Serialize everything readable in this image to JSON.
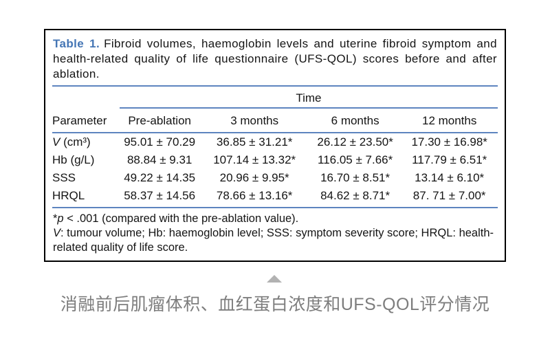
{
  "table": {
    "label": "Table 1.",
    "title": "Fibroid volumes, haemoglobin levels and uterine fibroid symptom and health-related quality of life questionnaire (UFS-QOL) scores before and after ablation.",
    "time_header": "Time",
    "columns": [
      "Parameter",
      "Pre-ablation",
      "3 months",
      "6 months",
      "12 months"
    ],
    "rows": [
      {
        "param_italic": "V",
        "param_rest": " (cm³)",
        "values": [
          "95.01 ± 70.29",
          "36.85 ± 31.21*",
          "26.12 ± 23.50*",
          "17.30 ± 16.98*"
        ]
      },
      {
        "param_italic": "",
        "param_rest": "Hb (g/L)",
        "values": [
          "88.84 ± 9.31",
          "107.14 ± 13.32*",
          "116.05 ± 7.66*",
          "117.79 ± 6.51*"
        ]
      },
      {
        "param_italic": "",
        "param_rest": "SSS",
        "values": [
          "49.22 ± 14.35",
          "20.96 ± 9.95*",
          "16.70 ± 8.51*",
          "13.14 ± 6.10*"
        ]
      },
      {
        "param_italic": "",
        "param_rest": "HRQL",
        "values": [
          "58.37 ± 14.56",
          "78.66 ± 13.16*",
          "84.62 ± 8.71*",
          "87. 71 ± 7.00*"
        ]
      }
    ],
    "footnote_significance": {
      "star": "*",
      "italic": "p",
      "rest": " < .001 (compared with the pre-ablation value)."
    },
    "footnote_abbreviations": {
      "italic": "V",
      "rest": ": tumour volume; Hb: haemoglobin level; SSS: symptom severity score; HRQL: health-related quality of life score."
    }
  },
  "caption": {
    "marker_icon": "triangle-up-icon",
    "text": "消融前后肌瘤体积、血红蛋白浓度和UFS-QOL评分情况"
  },
  "colors": {
    "accent_blue": "#4576b5",
    "rule_blue": "#5d84bf",
    "ink": "#141414",
    "border_black": "#000000",
    "caption_gray": "#7d7d7d",
    "marker_gray": "#b2b2b2"
  }
}
